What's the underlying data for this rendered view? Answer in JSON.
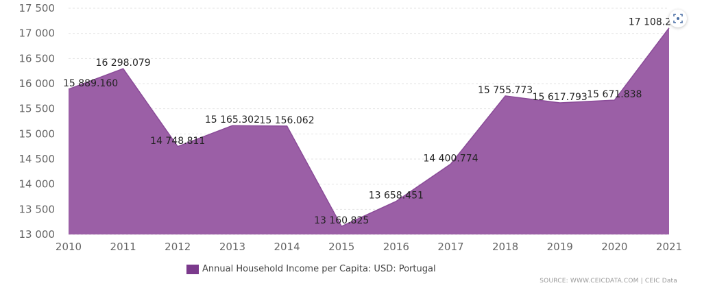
{
  "chart_data": {
    "type": "area",
    "x": [
      "2010",
      "2011",
      "2012",
      "2013",
      "2014",
      "2015",
      "2016",
      "2017",
      "2018",
      "2019",
      "2020",
      "2021"
    ],
    "values": [
      15889.16,
      16298.079,
      14748.811,
      15165.302,
      15156.062,
      13160.825,
      13658.451,
      14400.774,
      15755.773,
      15617.793,
      15671.838,
      17108.25
    ],
    "data_labels": [
      "15 889.160",
      "16 298.079",
      "14 748.811",
      "15 165.302",
      "15 156.062",
      "13 160.825",
      "13 658.451",
      "14 400.774",
      "15 755.773",
      "15 617.793",
      "15 671.838",
      "17 108.25"
    ],
    "y_ticks": [
      "13 000",
      "13 500",
      "14 000",
      "14 500",
      "15 000",
      "15 500",
      "16 000",
      "16 500",
      "17 000",
      "17 500"
    ],
    "y_tick_values": [
      13000,
      13500,
      14000,
      14500,
      15000,
      15500,
      16000,
      16500,
      17000,
      17500
    ],
    "ylim": [
      13000,
      17500
    ],
    "grid": true,
    "legend_position": "bottom-center",
    "series_name": "Annual Household Income per Capita: USD: Portugal",
    "colors": {
      "fill": "#9b5fa6",
      "line": "#8a4b98",
      "legend": "#7b3a8c",
      "grid": "#e3e3e3"
    }
  },
  "source": "SOURCE: WWW.CEICDATA.COM | CEIC Data",
  "icons": {
    "expand": "expand-icon"
  }
}
